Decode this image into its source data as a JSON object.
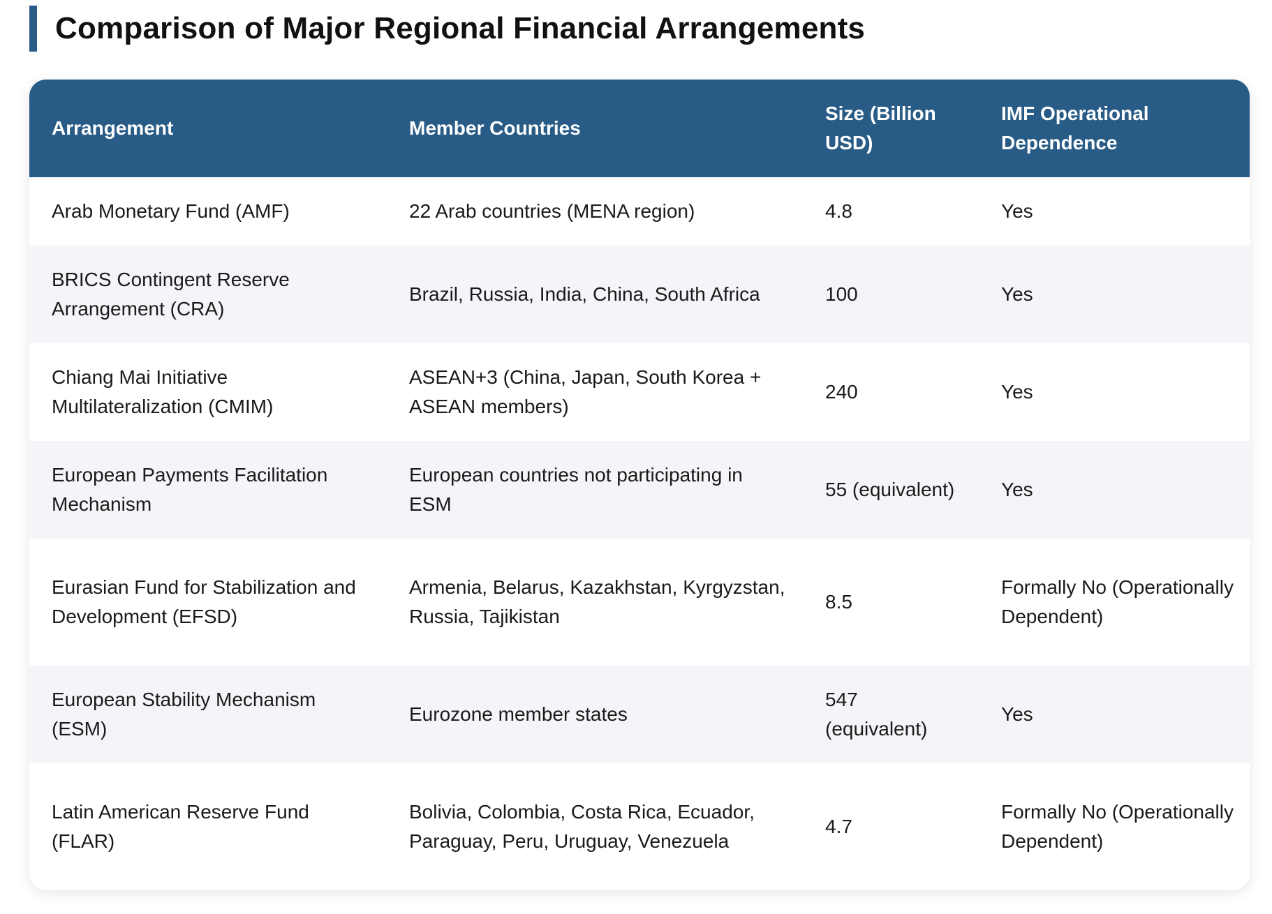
{
  "page": {
    "title": "Comparison of Major Regional Financial Arrangements",
    "accent_color": "#2a5b86",
    "header_color": "#285b86",
    "stripe_color": "#f4f5f8"
  },
  "table": {
    "headers": {
      "arrangement": "Arrangement",
      "members": "Member Countries",
      "size": "Size (Billion USD)",
      "imf": "IMF Operational Dependence"
    },
    "rows": [
      {
        "arrangement": "Arab Monetary Fund (AMF)",
        "members": "22 Arab countries (MENA region)",
        "size": "4.8",
        "imf": "Yes"
      },
      {
        "arrangement": "BRICS Contingent Reserve Arrangement (CRA)",
        "members": "Brazil, Russia, India, China, South Africa",
        "size": "100",
        "imf": "Yes"
      },
      {
        "arrangement": "Chiang Mai Initiative Multilateralization (CMIM)",
        "members": "ASEAN+3 (China, Japan, South Korea + ASEAN members)",
        "size": "240",
        "imf": "Yes"
      },
      {
        "arrangement": "European Payments Facilitation Mechanism",
        "members": "European countries not participating in ESM",
        "size": "55 (equivalent)",
        "imf": "Yes"
      },
      {
        "arrangement": "Eurasian Fund for Stabilization and Development (EFSD)",
        "members": "Armenia, Belarus, Kazakhstan, Kyrgyzstan, Russia, Tajikistan",
        "size": "8.5",
        "imf": "Formally No (Operationally Dependent)"
      },
      {
        "arrangement": "European Stability Mechanism (ESM)",
        "members": "Eurozone member states",
        "size": "547 (equivalent)",
        "imf": "Yes"
      },
      {
        "arrangement": "Latin American Reserve Fund (FLAR)",
        "members": "Bolivia, Colombia, Costa Rica, Ecuador, Paraguay, Peru, Uruguay, Venezuela",
        "size": "4.7",
        "imf": "Formally No (Operationally Dependent)"
      }
    ]
  }
}
